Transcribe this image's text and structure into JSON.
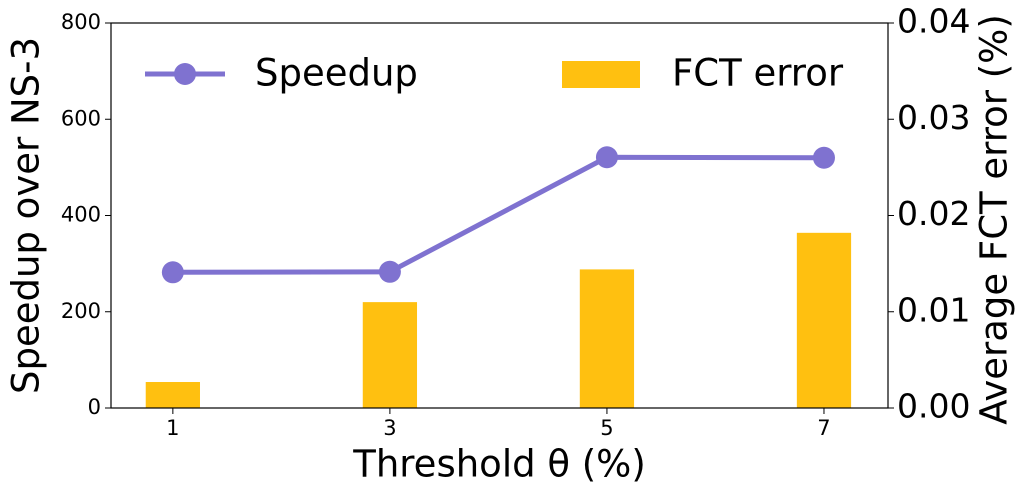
{
  "chart_data": {
    "type": "combo",
    "xlabel": "Threshold θ (%)",
    "ylabel": "Speedup over NS-3",
    "y2label": "Average FCT error (%)",
    "x": [
      1,
      3,
      5,
      7
    ],
    "xlim": [
      0.43,
      7.59
    ],
    "xticks": [
      1,
      3,
      5,
      7
    ],
    "ylim": [
      0,
      800
    ],
    "yticks": [
      0,
      200,
      400,
      600,
      800
    ],
    "y2lim": [
      0,
      0.04
    ],
    "y2ticks": [
      {
        "value": 0,
        "label": "0.00"
      },
      0.01,
      0.02,
      0.03,
      0.04
    ],
    "series": [
      {
        "name": "Speedup",
        "type": "line",
        "color": "#7f72d0",
        "values": [
          282,
          283,
          521,
          520
        ]
      },
      {
        "name": "FCT error",
        "type": "bar",
        "axis": "y2",
        "color": "#ffc010",
        "values": [
          0.0027,
          0.011,
          0.0144,
          0.0182
        ]
      }
    ]
  }
}
